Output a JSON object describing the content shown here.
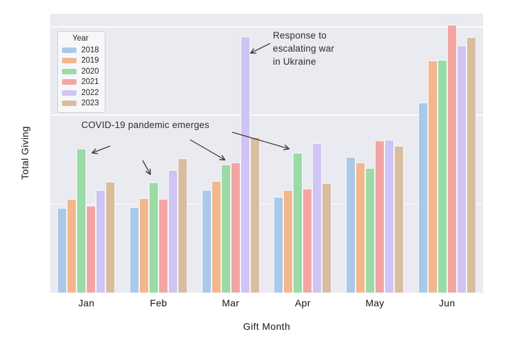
{
  "chart_data": {
    "type": "bar",
    "title": "",
    "xlabel": "Gift Month",
    "ylabel": "Total Giving",
    "categories": [
      "Jan",
      "Feb",
      "Mar",
      "Apr",
      "May",
      "Jun"
    ],
    "series": [
      {
        "name": "2018",
        "color": "#aac9e9",
        "values": [
          30.4,
          30.6,
          36.8,
          34.3,
          48.6,
          68.1
        ]
      },
      {
        "name": "2019",
        "color": "#f2b78c",
        "values": [
          33.6,
          33.8,
          40.0,
          36.8,
          46.7,
          83.2
        ]
      },
      {
        "name": "2020",
        "color": "#9adba6",
        "values": [
          51.6,
          39.5,
          45.9,
          50.1,
          44.7,
          83.5
        ]
      },
      {
        "name": "2021",
        "color": "#f3a5a4",
        "values": [
          31.1,
          33.6,
          46.7,
          37.3,
          54.5,
          96.0
        ]
      },
      {
        "name": "2022",
        "color": "#cfc4f4",
        "values": [
          36.8,
          44.0,
          91.9,
          53.6,
          54.8,
          88.6
        ]
      },
      {
        "name": "2023",
        "color": "#d8bd9f",
        "values": [
          39.8,
          48.1,
          55.8,
          39.3,
          52.6,
          91.6
        ]
      }
    ],
    "ylim": [
      0,
      100
    ],
    "y_units": "relative (no numeric tick labels shown)",
    "y_tick_labels": [],
    "gridlines_relative": [
      31.6,
      63.5,
      95.1
    ],
    "grid": true,
    "legend": {
      "title": "Year",
      "position": "upper left"
    },
    "annotations": [
      {
        "text": "COVID-19 pandemic emerges",
        "x": 118,
        "y": 172,
        "arrows": [
          [
            160,
            212,
            134,
            222
          ],
          [
            207,
            233,
            218,
            253
          ],
          [
            276,
            203,
            326,
            232
          ],
          [
            337,
            192,
            419,
            216
          ]
        ]
      },
      {
        "text": "Response to\nescalating war\nin Ukraine",
        "x": 396,
        "y": 42,
        "arrows": [
          [
            392,
            63,
            364,
            77
          ]
        ]
      }
    ],
    "colors": {
      "plot_background": "#eaeaf1",
      "gridline": "#fcfcfe",
      "figure_background": "#ffffff",
      "annotation_arrow": "#3a3a3a",
      "text": "#141414"
    }
  }
}
